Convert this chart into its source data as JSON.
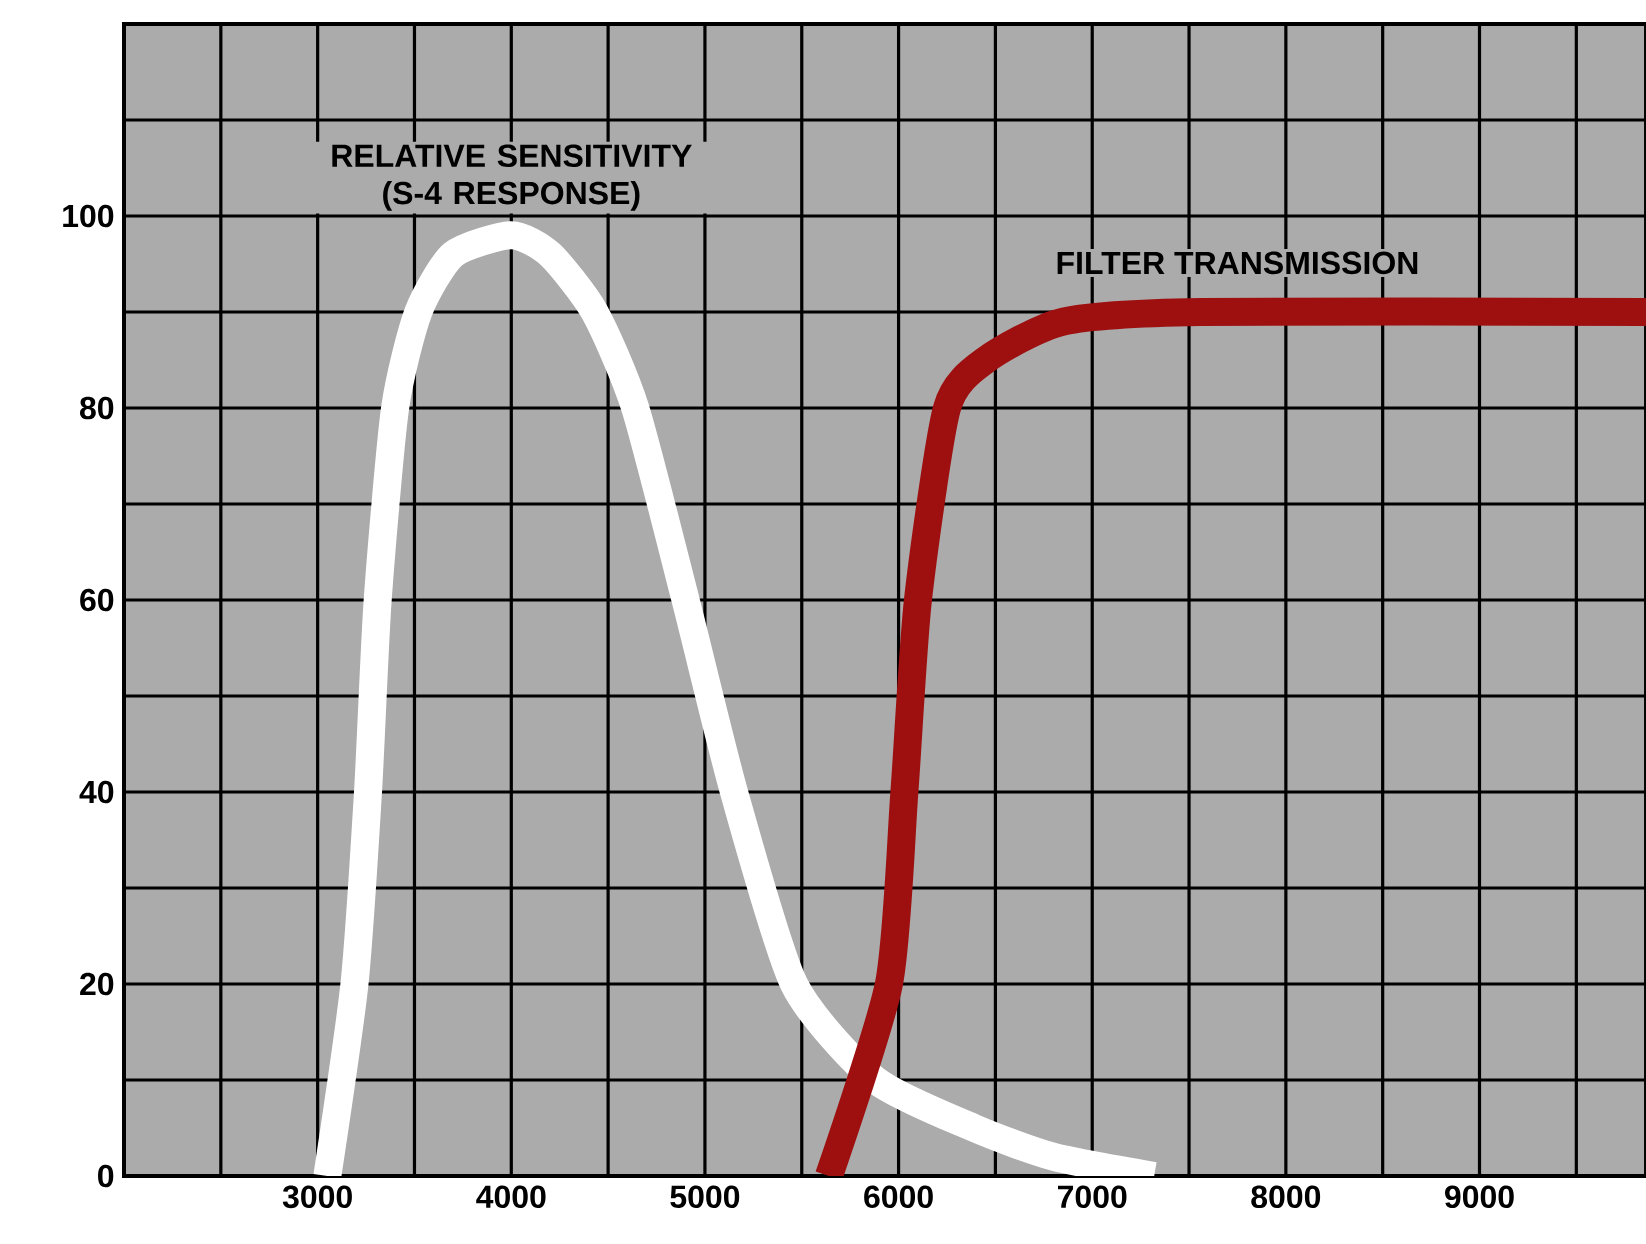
{
  "chart_data": {
    "type": "line",
    "xlim": [
      2000,
      9860
    ],
    "ylim": [
      0,
      120
    ],
    "xticks": [
      {
        "value": 2500,
        "label": null
      },
      3000,
      {
        "value": 3500,
        "label": null
      },
      4000,
      {
        "value": 4500,
        "label": null
      },
      5000,
      {
        "value": 5500,
        "label": null
      },
      6000,
      {
        "value": 6500,
        "label": null
      },
      7000,
      {
        "value": 7500,
        "label": null
      },
      8000,
      {
        "value": 8500,
        "label": null
      },
      9000,
      {
        "value": 9500,
        "label": null
      }
    ],
    "yticks": [
      0,
      {
        "value": 10,
        "label": null
      },
      20,
      {
        "value": 30,
        "label": null
      },
      40,
      {
        "value": 50,
        "label": null
      },
      60,
      {
        "value": 70,
        "label": null
      },
      80,
      {
        "value": 90,
        "label": null
      },
      100,
      {
        "value": 110,
        "label": null
      }
    ],
    "grid": true,
    "marker": "none",
    "line_style": "solid",
    "series": [
      {
        "name": "RELATIVE SENSITIVITY (S-4 RESPONSE)",
        "color": "#ffffff",
        "x": [
          3050,
          3190,
          3260,
          3310,
          3400,
          3520,
          3700,
          4000,
          4200,
          4430,
          4640,
          4900,
          5150,
          5460,
          5880,
          6390,
          6800,
          7320
        ],
        "values": [
          0,
          20,
          40,
          60,
          80,
          90,
          96,
          98,
          96,
          90,
          80,
          60,
          40,
          20,
          10,
          5,
          2,
          0
        ]
      },
      {
        "name": "FILTER TRANSMISSION",
        "color": "#9e1010",
        "x": [
          5640,
          5950,
          6030,
          6100,
          6250,
          6450,
          6850,
          7560,
          9860
        ],
        "values": [
          0,
          20,
          40,
          60,
          80,
          85,
          89,
          90,
          90
        ]
      }
    ]
  }
}
